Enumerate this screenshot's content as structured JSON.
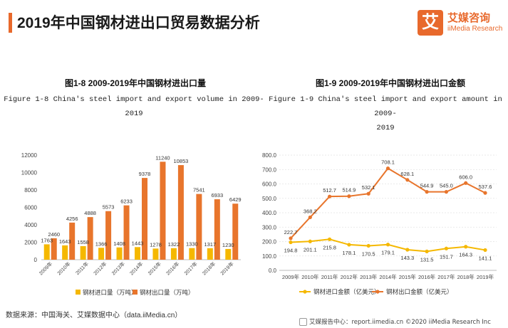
{
  "page": {
    "title": "2019年中国钢材进出口贸易数据分析",
    "logo_char": "艾",
    "logo_cn": "艾媒咨询",
    "logo_en": "iiMedia Research",
    "source": "数据来源：中国海关、艾媒数据中心（data.iiMedia.cn）",
    "footer": "艾媒报告中心：report.iimedia.cn ©2020  iiMedia Research Inc",
    "colors": {
      "accent": "#e8692c",
      "import": "#f5b800",
      "export": "#e8752c"
    }
  },
  "chart_data": [
    {
      "type": "bar",
      "title": "图1-8 2009-2019年中国钢材进出口量",
      "subtitle_line1": "Figure 1-8 China's steel import and export volume in 2009-",
      "subtitle_line2": "2019",
      "categories": [
        "2009年",
        "2010年",
        "2011年",
        "2012年",
        "2013年",
        "2014年",
        "2015年",
        "2016年",
        "2017年",
        "2018年",
        "2019年"
      ],
      "series": [
        {
          "name": "钢材进口量（万吨）",
          "values": [
            1763,
            1643,
            1558,
            1366,
            1408,
            1443,
            1278,
            1322,
            1330,
            1317,
            1230
          ]
        },
        {
          "name": "钢材出口量（万吨）",
          "values": [
            2460,
            4256,
            4888,
            5573,
            6233,
            9378,
            11240,
            10853,
            7541,
            6933,
            6429
          ]
        }
      ],
      "yticks": [
        "0",
        "2000",
        "4000",
        "6000",
        "8000",
        "10000",
        "12000"
      ],
      "ylim": [
        0,
        12000
      ],
      "legend_position": "bottom"
    },
    {
      "type": "line",
      "title": "图1-9 2009-2019年中国钢材进出口金额",
      "subtitle_line1": "Figure 1-9 China's steel import and export amount in 2009-",
      "subtitle_line2": "2019",
      "categories": [
        "2009年",
        "2010年",
        "2011年",
        "2012年",
        "2013年",
        "2014年",
        "2015年",
        "2016年",
        "2017年",
        "2018年",
        "2019年"
      ],
      "series": [
        {
          "name": "钢材进口金额（亿美元）",
          "values": [
            194.8,
            201.1,
            215.8,
            178.1,
            170.5,
            179.1,
            143.3,
            131.5,
            151.7,
            164.3,
            141.1
          ],
          "labels": [
            "194.8",
            "201.1",
            "215.8",
            "178.1",
            "170.5",
            "179.1",
            "143.3",
            "131.5",
            "151.7",
            "164.3",
            "141.1"
          ]
        },
        {
          "name": "钢材出口金额（亿美元）",
          "values": [
            222.7,
            368.2,
            512.7,
            514.9,
            532.1,
            708.1,
            628.1,
            544.9,
            545.0,
            606.0,
            537.6
          ],
          "labels": [
            "222.7",
            "368.2",
            "512.7",
            "514.9",
            "532.1",
            "708.1",
            "628.1",
            "544.9",
            "545.0",
            "606.0",
            "537.6"
          ]
        }
      ],
      "yticks": [
        "0.0",
        "100.0",
        "200.0",
        "300.0",
        "400.0",
        "500.0",
        "600.0",
        "700.0",
        "800.0"
      ],
      "ylim": [
        0,
        800
      ],
      "legend_position": "bottom"
    }
  ]
}
